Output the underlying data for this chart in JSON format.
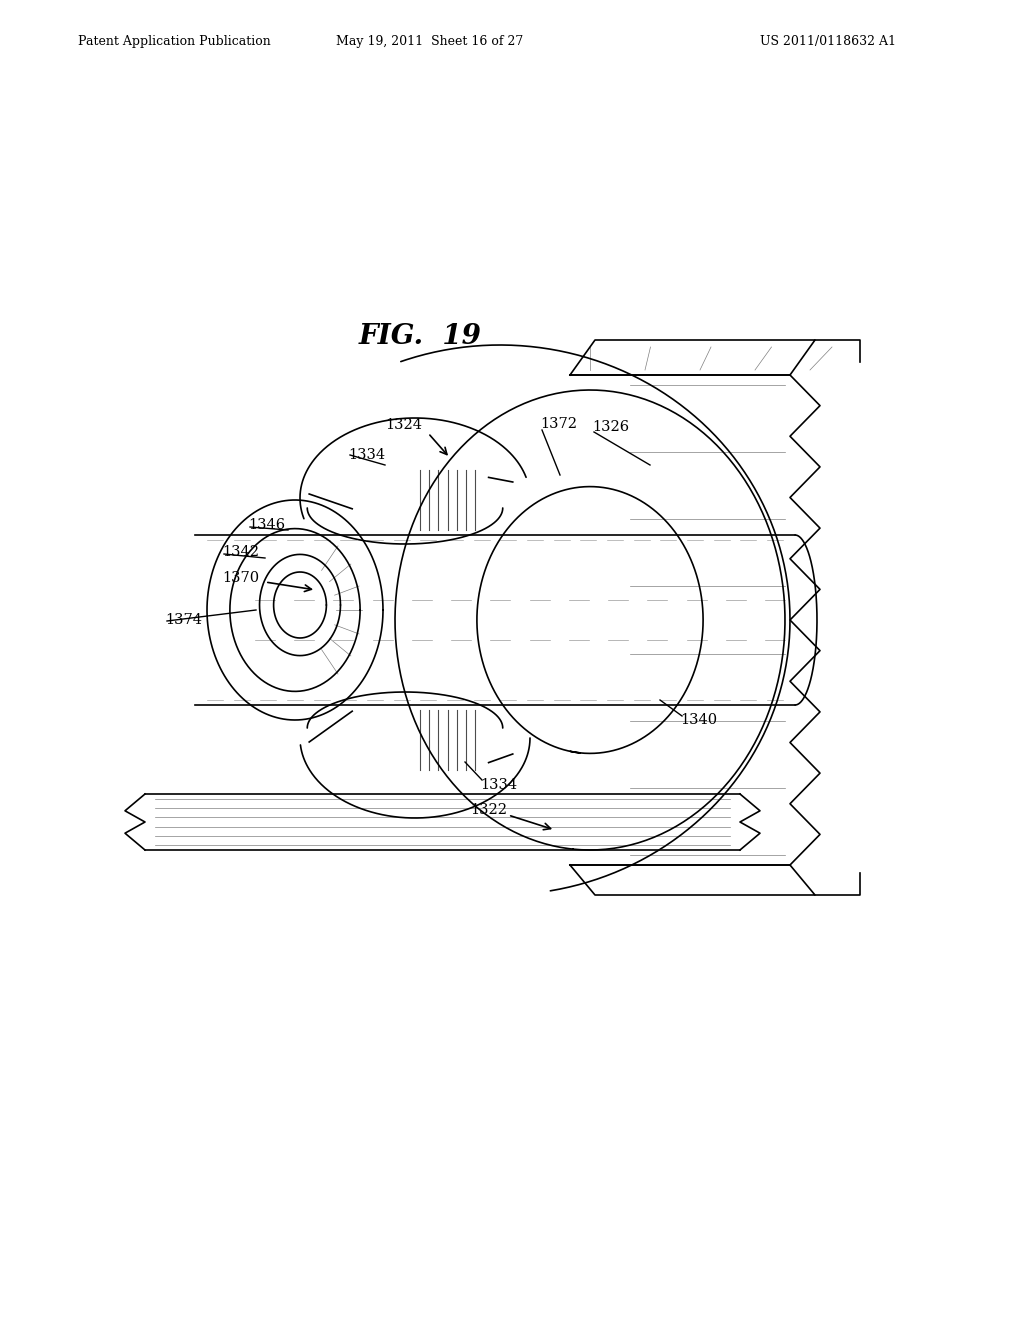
{
  "title": "FIG.  19",
  "header_left": "Patent Application Publication",
  "header_mid": "May 19, 2011  Sheet 16 of 27",
  "header_right": "US 2011/0118632 A1",
  "background_color": "#ffffff",
  "line_color": "#000000",
  "label_fontsize": 10.5,
  "title_fontsize": 20,
  "header_fontsize": 9
}
